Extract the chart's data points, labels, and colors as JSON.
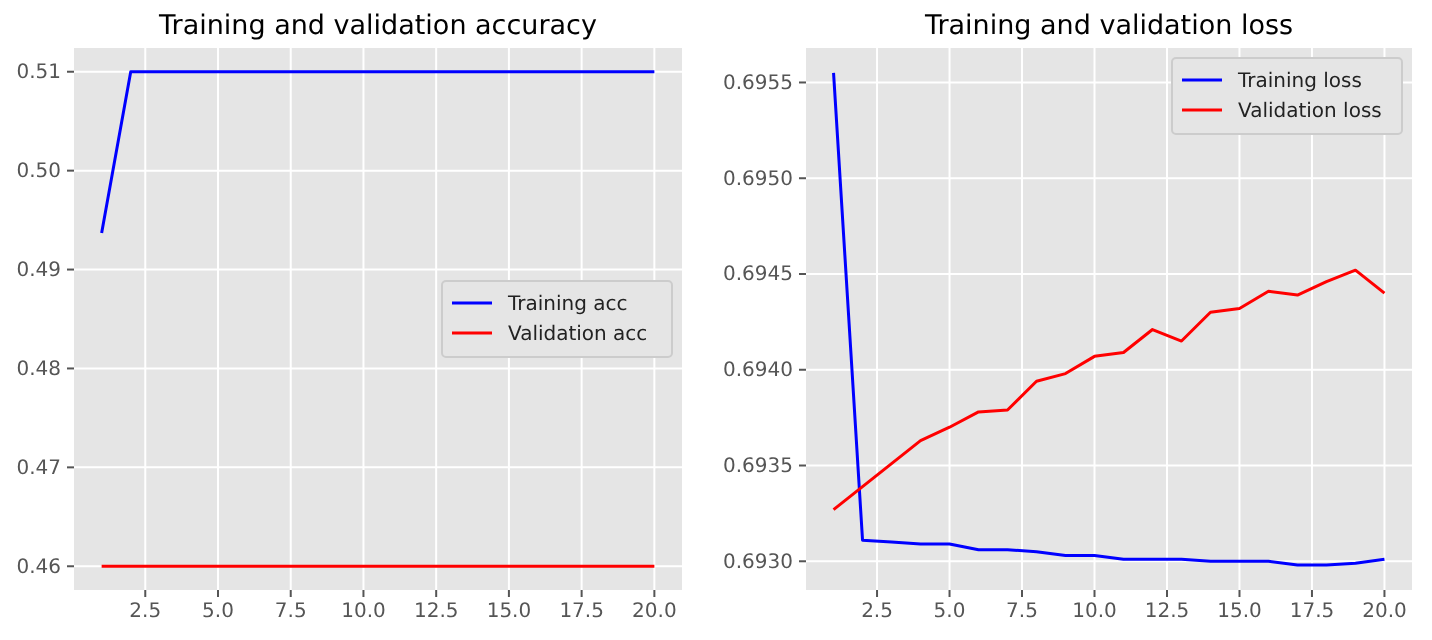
{
  "chart_data": [
    {
      "type": "line",
      "title": "Training and validation accuracy",
      "x": [
        1,
        2,
        3,
        4,
        5,
        6,
        7,
        8,
        9,
        10,
        11,
        12,
        13,
        14,
        15,
        16,
        17,
        18,
        19,
        20
      ],
      "series": [
        {
          "name": "Training acc",
          "color": "#0000ff",
          "values": [
            0.4937,
            0.51,
            0.51,
            0.51,
            0.51,
            0.51,
            0.51,
            0.51,
            0.51,
            0.51,
            0.51,
            0.51,
            0.51,
            0.51,
            0.51,
            0.51,
            0.51,
            0.51,
            0.51,
            0.51
          ]
        },
        {
          "name": "Validation acc",
          "color": "#ff0000",
          "values": [
            0.46,
            0.46,
            0.46,
            0.46,
            0.46,
            0.46,
            0.46,
            0.46,
            0.46,
            0.46,
            0.46,
            0.46,
            0.46,
            0.46,
            0.46,
            0.46,
            0.46,
            0.46,
            0.46,
            0.46
          ]
        }
      ],
      "xlim": [
        0.05,
        20.95
      ],
      "xticks": [
        2.5,
        {
          "value": 5,
          "label": "5.0"
        },
        7.5,
        {
          "value": 10,
          "label": "10.0"
        },
        12.5,
        {
          "value": 15,
          "label": "15.0"
        },
        17.5,
        {
          "value": 20,
          "label": "20.0"
        }
      ],
      "ylim": [
        0.4576,
        0.5124
      ],
      "yticks": [
        0.46,
        0.47,
        0.48,
        0.49,
        {
          "value": 0.5,
          "label": "0.50"
        },
        0.51
      ],
      "grid": true,
      "legend": "right"
    },
    {
      "type": "line",
      "title": "Training and validation loss",
      "x": [
        1,
        2,
        3,
        4,
        5,
        6,
        7,
        8,
        9,
        10,
        11,
        12,
        13,
        14,
        15,
        16,
        17,
        18,
        19,
        20
      ],
      "series": [
        {
          "name": "Training loss",
          "color": "#0000ff",
          "values": [
            0.69555,
            0.69311,
            0.6931,
            0.69309,
            0.69309,
            0.69306,
            0.69306,
            0.69305,
            0.69303,
            0.69303,
            0.69301,
            0.69301,
            0.69301,
            0.693,
            0.693,
            0.693,
            0.69298,
            0.69298,
            0.69299,
            0.69301
          ]
        },
        {
          "name": "Validation loss",
          "color": "#ff0000",
          "values": [
            0.69327,
            0.69339,
            0.69351,
            0.69363,
            0.6937,
            0.69378,
            0.69379,
            0.69394,
            0.69398,
            0.69407,
            0.69409,
            0.69421,
            0.69415,
            0.6943,
            0.69432,
            0.69441,
            0.69439,
            0.69446,
            0.69452,
            0.6944
          ]
        }
      ],
      "xlim": [
        0.05,
        20.95
      ],
      "xticks": [
        2.5,
        {
          "value": 5,
          "label": "5.0"
        },
        7.5,
        {
          "value": 10,
          "label": "10.0"
        },
        12.5,
        {
          "value": 15,
          "label": "15.0"
        },
        17.5,
        {
          "value": 20,
          "label": "20.0"
        }
      ],
      "ylim": [
        0.69285,
        0.69568
      ],
      "yticks": [
        {
          "value": 0.693,
          "label": "0.6930"
        },
        0.6935,
        {
          "value": 0.694,
          "label": "0.6940"
        },
        0.6945,
        {
          "value": 0.695,
          "label": "0.6950"
        },
        0.6955
      ],
      "grid": true,
      "legend": "top right"
    }
  ]
}
